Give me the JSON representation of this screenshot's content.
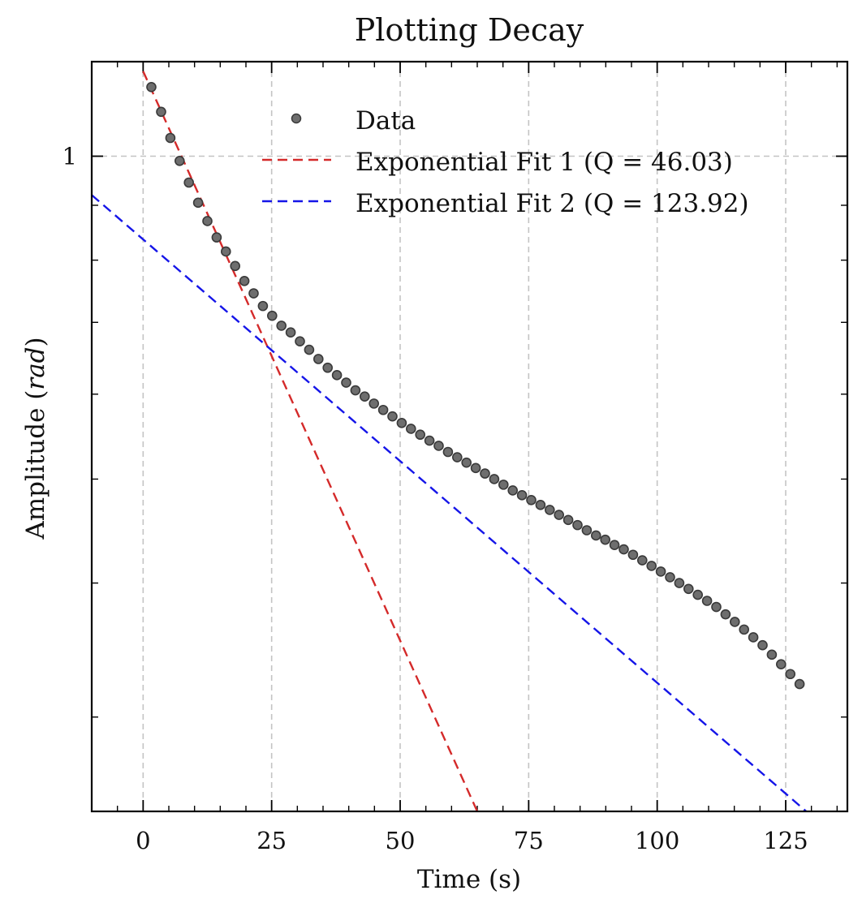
{
  "chart_data": {
    "type": "scatter",
    "title": "Plotting Decay",
    "xlabel": "Time (s)",
    "ylabel_prefix": "Amplitude (",
    "ylabel_unit": "rad",
    "ylabel_suffix": ")",
    "xlim": [
      -10,
      137
    ],
    "ylim": [
      0.245,
      1.225
    ],
    "yscale": "log",
    "grid": true,
    "legend_position": "top-right",
    "x_ticks": [
      0,
      25,
      50,
      75,
      100,
      125
    ],
    "x_tick_labels": [
      "0",
      "25",
      "50",
      "75",
      "100",
      "125"
    ],
    "y_ticks": [
      1
    ],
    "y_tick_labels": [
      "1"
    ],
    "y_minor_ticks": [
      0.3,
      0.4,
      0.5,
      0.6,
      0.7,
      0.8,
      0.9
    ],
    "series": [
      {
        "name": "Data",
        "kind": "scatter",
        "color": "#6e6e6e",
        "edge_color": "#3a3a3a",
        "x": [
          1.6,
          3.5,
          5.3,
          7.1,
          8.9,
          10.7,
          12.5,
          14.3,
          16.1,
          17.9,
          19.7,
          21.5,
          23.3,
          25.1,
          26.9,
          28.7,
          30.5,
          32.3,
          34.1,
          35.9,
          37.7,
          39.5,
          41.3,
          43.1,
          44.9,
          46.7,
          48.5,
          50.3,
          52.1,
          53.9,
          55.7,
          57.5,
          59.3,
          61.1,
          62.9,
          64.7,
          66.5,
          68.3,
          70.1,
          71.9,
          73.7,
          75.5,
          77.3,
          79.1,
          80.9,
          82.7,
          84.5,
          86.3,
          88.1,
          89.9,
          91.7,
          93.5,
          95.3,
          97.1,
          98.9,
          100.7,
          102.5,
          104.3,
          106.1,
          107.9,
          109.7,
          111.5,
          113.3,
          115.1,
          116.9,
          118.7,
          120.5,
          122.3,
          124.1,
          125.9,
          127.7
        ],
        "y": [
          1.16,
          1.1,
          1.04,
          0.99,
          0.945,
          0.905,
          0.87,
          0.84,
          0.815,
          0.79,
          0.765,
          0.745,
          0.725,
          0.71,
          0.695,
          0.685,
          0.672,
          0.66,
          0.647,
          0.635,
          0.625,
          0.615,
          0.605,
          0.597,
          0.588,
          0.58,
          0.572,
          0.564,
          0.557,
          0.55,
          0.543,
          0.537,
          0.53,
          0.524,
          0.518,
          0.512,
          0.506,
          0.5,
          0.494,
          0.488,
          0.483,
          0.478,
          0.473,
          0.468,
          0.463,
          0.458,
          0.453,
          0.448,
          0.443,
          0.439,
          0.434,
          0.43,
          0.425,
          0.42,
          0.415,
          0.41,
          0.405,
          0.4,
          0.395,
          0.39,
          0.385,
          0.38,
          0.374,
          0.368,
          0.362,
          0.356,
          0.35,
          0.343,
          0.336,
          0.329,
          0.322
        ]
      },
      {
        "name": "Exponential Fit 1 (Q = 46.03)",
        "kind": "line",
        "dash": "dashed",
        "color": "#d42a2a",
        "x": [
          0,
          65
        ],
        "y": [
          1.2,
          0.245
        ]
      },
      {
        "name": "Exponential Fit 2 (Q = 123.92)",
        "kind": "line",
        "dash": "dashed",
        "color": "#1515e8",
        "x": [
          -10,
          129
        ],
        "y": [
          0.92,
          0.245
        ]
      }
    ]
  }
}
